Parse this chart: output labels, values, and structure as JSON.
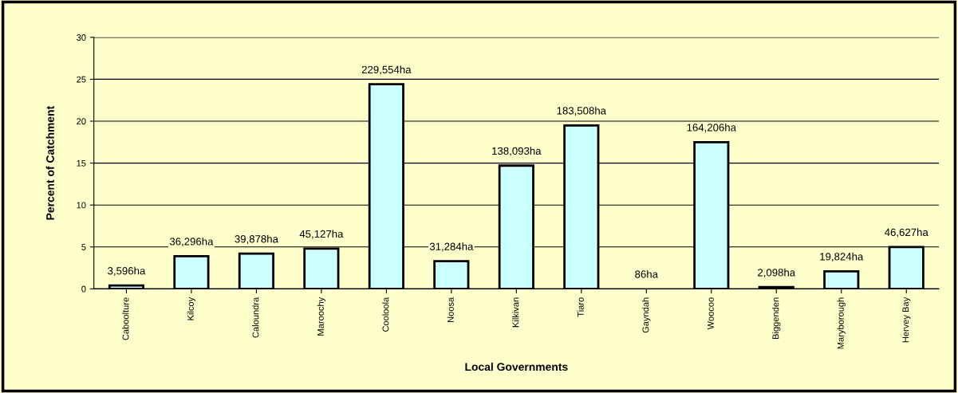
{
  "chart_data": {
    "type": "bar",
    "xlabel": "Local Governments",
    "ylabel": "Percent of Catchment",
    "categories": [
      "Caboolture",
      "Kilcoy",
      "Caloundra",
      "Maroochy",
      "Cooloola",
      "Noosa",
      "Kilkivan",
      "Tiaro",
      "Gayndah",
      "Woocoo",
      "Biggenden",
      "Maryborough",
      "Hervey Bay"
    ],
    "values": [
      0.4,
      3.9,
      4.2,
      4.8,
      24.4,
      3.3,
      14.7,
      19.5,
      0,
      17.5,
      0.2,
      2.1,
      5.0
    ],
    "annotations": [
      {
        "text": "3,596ha",
        "x": "Caboolture",
        "y": 0.4
      },
      {
        "text": "36,296ha",
        "x": "Kilcoy",
        "y": 3.9
      },
      {
        "text": "39,878ha",
        "x": "Caloundra",
        "y": 4.2
      },
      {
        "text": "45,127ha",
        "x": "Maroochy",
        "y": 4.8
      },
      {
        "text": "229,554ha",
        "x": "Cooloola",
        "y": 24.4
      },
      {
        "text": "31,284ha",
        "x": "Noosa",
        "y": 3.3
      },
      {
        "text": "138,093ha",
        "x": "Kilkivan",
        "y": 14.7
      },
      {
        "text": "183,508ha",
        "x": "Tiaro",
        "y": 19.5
      },
      {
        "text": "86ha",
        "x": "Gayndah",
        "y": 0
      },
      {
        "text": "164,206ha",
        "x": "Woocoo",
        "y": 17.5
      },
      {
        "text": "2,098ha",
        "x": "Biggenden",
        "y": 0.2
      },
      {
        "text": "19,824ha",
        "x": "Maryborough",
        "y": 2.1
      },
      {
        "text": "46,627ha",
        "x": "Hervey Bay",
        "y": 5.0
      }
    ],
    "color": "#ccffff",
    "ylim": [
      0,
      30
    ],
    "yticks": [
      0,
      5,
      10,
      15,
      20,
      25,
      30
    ],
    "grid": "y",
    "legend": false
  }
}
